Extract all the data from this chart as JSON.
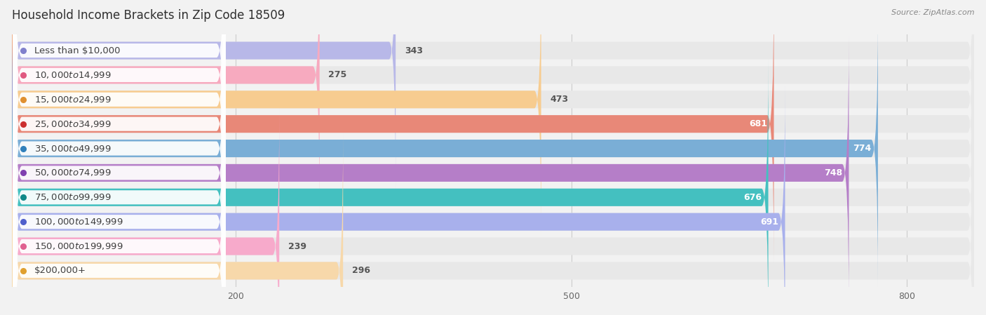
{
  "title": "Household Income Brackets in Zip Code 18509",
  "source": "Source: ZipAtlas.com",
  "categories": [
    "Less than $10,000",
    "$10,000 to $14,999",
    "$15,000 to $24,999",
    "$25,000 to $34,999",
    "$35,000 to $49,999",
    "$50,000 to $74,999",
    "$75,000 to $99,999",
    "$100,000 to $149,999",
    "$150,000 to $199,999",
    "$200,000+"
  ],
  "values": [
    343,
    275,
    473,
    681,
    774,
    748,
    676,
    691,
    239,
    296
  ],
  "bar_colors": [
    "#b8b8e8",
    "#f7aabf",
    "#f7cc90",
    "#e88878",
    "#7aaed6",
    "#b57ec8",
    "#44c0c0",
    "#a8b0ec",
    "#f7aacb",
    "#f7d8aa"
  ],
  "label_dot_colors": [
    "#8080cc",
    "#e05880",
    "#e09030",
    "#cc3030",
    "#3080bb",
    "#8040b0",
    "#108888",
    "#5060cc",
    "#e06090",
    "#e0a030"
  ],
  "xlim_max": 860,
  "xticks": [
    200,
    500,
    800
  ],
  "background_color": "#f2f2f2",
  "bar_background_color": "#e8e8e8",
  "title_fontsize": 12,
  "label_fontsize": 9.5,
  "value_fontsize": 9,
  "bar_height": 0.72,
  "value_threshold_inside": 480
}
